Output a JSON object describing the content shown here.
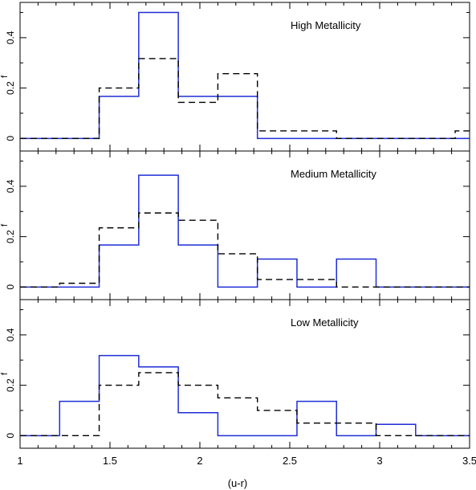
{
  "figure": {
    "xlabel": "(u-r)",
    "x_ticks": [
      "1",
      "1.5",
      "2",
      "2.5",
      "3",
      "3.5"
    ],
    "y_ticks": [
      "0",
      "0.2",
      "0.4"
    ]
  },
  "chart_data": [
    {
      "type": "histogram",
      "title": "High Metallicity",
      "xlabel": "(u-r)",
      "ylabel": "f",
      "xlim": [
        1,
        3.5
      ],
      "ylim": [
        -0.05,
        0.54
      ],
      "bin_edges": [
        1.0,
        1.22,
        1.44,
        1.66,
        1.88,
        2.1,
        2.32,
        2.54,
        2.76,
        2.98,
        3.2,
        3.42,
        3.5
      ],
      "series": [
        {
          "color": "#1f2ed6",
          "style": "solid",
          "values": [
            0,
            0,
            0.167,
            0.5,
            0.167,
            0.167,
            0,
            0,
            0,
            0,
            0,
            0
          ]
        },
        {
          "color": "#000000",
          "style": "dashed",
          "values": [
            0,
            0,
            0.2,
            0.317,
            0.143,
            0.257,
            0.03,
            0.03,
            0,
            0,
            0,
            0.03
          ]
        }
      ]
    },
    {
      "type": "histogram",
      "title": "Medium Metallicity",
      "xlabel": "(u-r)",
      "ylabel": "f",
      "xlim": [
        1,
        3.5
      ],
      "ylim": [
        -0.05,
        0.54
      ],
      "bin_edges": [
        1.0,
        1.22,
        1.44,
        1.66,
        1.88,
        2.1,
        2.32,
        2.54,
        2.76,
        2.98,
        3.2,
        3.42,
        3.5
      ],
      "series": [
        {
          "color": "#1f2ed6",
          "style": "solid",
          "values": [
            0,
            0,
            0.167,
            0.444,
            0.167,
            0,
            0.111,
            0,
            0.111,
            0,
            0,
            0
          ]
        },
        {
          "color": "#000000",
          "style": "dashed",
          "values": [
            0,
            0.015,
            0.235,
            0.294,
            0.265,
            0.132,
            0.03,
            0.03,
            0,
            0,
            0,
            0
          ]
        }
      ]
    },
    {
      "type": "histogram",
      "title": "Low Metallicity",
      "xlabel": "(u-r)",
      "ylabel": "f",
      "xlim": [
        1,
        3.5
      ],
      "ylim": [
        -0.05,
        0.54
      ],
      "bin_edges": [
        1.0,
        1.22,
        1.44,
        1.66,
        1.88,
        2.1,
        2.32,
        2.54,
        2.76,
        2.98,
        3.2,
        3.42,
        3.5
      ],
      "series": [
        {
          "color": "#1f2ed6",
          "style": "solid",
          "values": [
            0,
            0.136,
            0.318,
            0.273,
            0.091,
            0,
            0,
            0.136,
            0,
            0.045,
            0,
            0
          ]
        },
        {
          "color": "#000000",
          "style": "dashed",
          "values": [
            0,
            0,
            0.2,
            0.25,
            0.2,
            0.15,
            0.1,
            0.05,
            0.05,
            0,
            0,
            0
          ]
        }
      ]
    }
  ]
}
